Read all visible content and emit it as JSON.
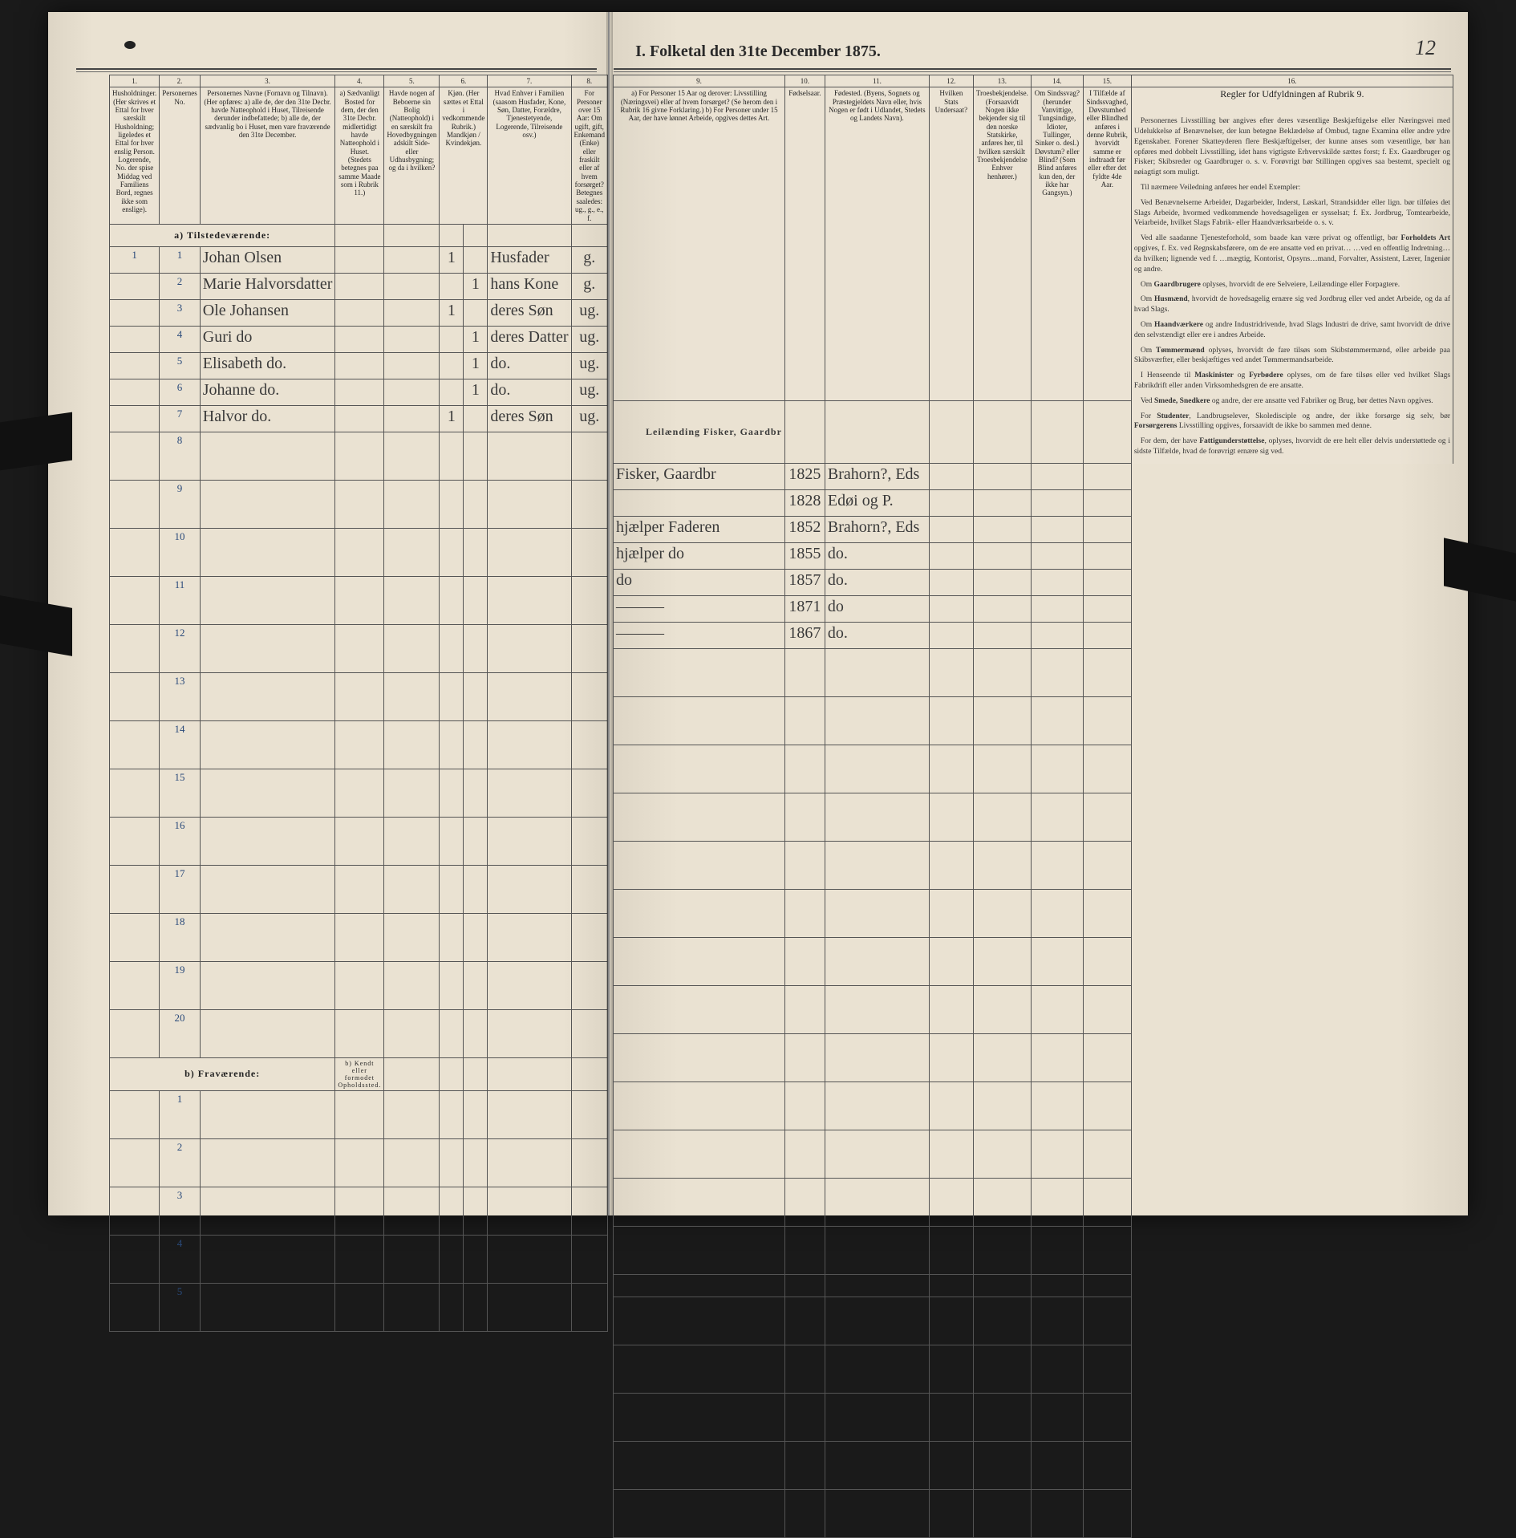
{
  "title": "I. Folketal den 31te December 1875.",
  "page_number": "12",
  "columns_left": {
    "c1": "1.",
    "c2": "2.",
    "c3": "3.",
    "c4": "4.",
    "c5": "5.",
    "c6": "6.",
    "c7": "7.",
    "c8": "8."
  },
  "columns_right": {
    "c9": "9.",
    "c10": "10.",
    "c11": "11.",
    "c12": "12.",
    "c13": "13.",
    "c14": "14.",
    "c15": "15.",
    "c16": "16."
  },
  "headers_left": {
    "h1": "Husholdninger. (Her skrives et Ettal for hver særskilt Husholdning; ligeledes et Ettal for hver enslig Person. Logerende, No. der spise Middag ved Familiens Bord, regnes ikke som enslige).",
    "h2": "Personernes No.",
    "h3": "Personernes Navne (Fornavn og Tilnavn).\n(Her opføres:\na) alle de, der den 31te Decbr. havde Natteophold i Huset, Tilreisende derunder indbefattede;\nb) alle de, der sædvanlig bo i Huset, men vare fraværende den 31te December.",
    "h4": "a) Sædvanligt Bosted for dem, der den 31te Decbr. midlertidigt havde Natteophold i Huset. (Stedets betegnes paa samme Maade som i Rubrik 11.)",
    "h5": "Havde nogen af Beboerne sin Bolig (Natteophold) i en særskilt fra Hovedbygningen adskilt Side- eller Udhusbygning; og da i hvilken?",
    "h6": "Kjøn. (Her sættes et Ettal i vedkommende Rubrik.) Mandkjøn / Kvindekjøn.",
    "h7": "Hvad Enhver i Familien (saasom Husfader, Kone, Søn, Datter, Forældre, Tjenestetyende, Logerende, Tilreisende osv.)",
    "h8": "For Personer over 15 Aar: Om ugift, gift, Enkemand (Enke) eller fraskilt eller af hvem forsørget? Betegnes saaledes: ug., g., e., f."
  },
  "headers_right": {
    "h9": "a) For Personer 15 Aar og derover: Livsstilling (Næringsvei) eller af hvem forsørget? (Se herom den i Rubrik 16 givne Forklaring.)\nb) For Personer under 15 Aar, der have lønnet Arbeide, opgives dettes Art.",
    "h10": "Fødselsaar.",
    "h11": "Fødested. (Byens, Sognets og Præstegjeldets Navn eller, hvis Nogen er født i Udlandet, Stedets og Landets Navn).",
    "h12": "Hvilken Stats Undersaat?",
    "h13": "Troesbekjendelse. (Forsaavidt Nogen ikke bekjender sig til den norske Statskirke, anføres her, til hvilken særskilt Troesbekjendelse Enhver henhører.)",
    "h14": "Om Sindssvag? (herunder Vanvittige, Tungsindige, Idioter, Tullinger, Sinker o. desl.) Døvstum? eller Blind? (Som Blind anføres kun den, der ikke har Gangsyn.)",
    "h15": "I Tilfælde af Sindssvaghed, Døvstumhed eller Blindhed anføres i denne Rubrik, hvorvidt samme er indtraadt før eller efter det fyldte 4de Aar.",
    "h16": "Regler for Udfyldningen af Rubrik 9."
  },
  "section_a": "a) Tilstedeværende:",
  "section_b": "b) Fraværende:",
  "section_b_note": "b) Kendt eller formodet Opholdssted.",
  "rows": [
    {
      "n": "1",
      "p": "1",
      "name": "Johan Olsen",
      "c4": "",
      "c5": "",
      "c6a": "1",
      "c6b": "",
      "role": "Husfader",
      "civ": "g.",
      "occ": "Leilænding\nFisker, Gaardbr",
      "year": "1825",
      "place": "Brahorn?, Eds"
    },
    {
      "n": "",
      "p": "2",
      "name": "Marie Halvorsdatter",
      "c4": "",
      "c5": "",
      "c6a": "",
      "c6b": "1",
      "role": "hans Kone",
      "civ": "g.",
      "occ": "",
      "year": "1828",
      "place": "Edøi og P."
    },
    {
      "n": "",
      "p": "3",
      "name": "Ole Johansen",
      "c4": "",
      "c5": "",
      "c6a": "1",
      "c6b": "",
      "role": "deres Søn",
      "civ": "ug.",
      "occ": "hjælper Faderen",
      "year": "1852",
      "place": "Brahorn?, Eds"
    },
    {
      "n": "",
      "p": "4",
      "name": "Guri do",
      "c4": "",
      "c5": "",
      "c6a": "",
      "c6b": "1",
      "role": "deres Datter",
      "civ": "ug.",
      "occ": "hjælper do",
      "year": "1855",
      "place": "do."
    },
    {
      "n": "",
      "p": "5",
      "name": "Elisabeth do.",
      "c4": "",
      "c5": "",
      "c6a": "",
      "c6b": "1",
      "role": "do.",
      "civ": "ug.",
      "occ": "do",
      "year": "1857",
      "place": "do."
    },
    {
      "n": "",
      "p": "6",
      "name": "Johanne do.",
      "c4": "",
      "c5": "",
      "c6a": "",
      "c6b": "1",
      "role": "do.",
      "civ": "ug.",
      "occ": "———",
      "year": "1871",
      "place": "do"
    },
    {
      "n": "",
      "p": "7",
      "name": "Halvor do.",
      "c4": "",
      "c5": "",
      "c6a": "1",
      "c6b": "",
      "role": "deres Søn",
      "civ": "ug.",
      "occ": "———",
      "year": "1867",
      "place": "do."
    }
  ],
  "empty_left": [
    "8",
    "9",
    "10",
    "11",
    "12",
    "13",
    "14",
    "15",
    "16",
    "17",
    "18",
    "19",
    "20"
  ],
  "empty_b": [
    "1",
    "2",
    "3",
    "4",
    "5"
  ],
  "side_header": "Regler for Udfyldningen\naf\nRubrik 9.",
  "side_paragraphs": [
    "Personernes Livsstilling bør angives efter deres væsentlige Beskjæftigelse eller Næringsvei med Udelukkelse af Benævnelser, der kun betegne Beklædelse af Ombud, tagne Examina eller andre ydre Egenskaber. Forener Skatteyderen flere Beskjæftigelser, der kunne anses som væsentlige, bør han opføres med dobbelt Livsstilling, idet hans vigtigste Erhvervskilde sættes forst; f. Ex. Gaardbruger og Fisker; Skibsreder og Gaardbruger o. s. v. Forøvrigt bør Stillingen opgives saa bestemt, specielt og nøiagtigt som muligt.",
    "Til nærmere Veiledning anføres her endel Exempler:",
    "Ved Benævnelserne Arbeider, Dagarbeider, Inderst, Løskarl, Strandsidder eller lign. bør tilføies det Slags Arbeide, hvormed vedkommende hovedsageligen er sysselsat; f. Ex. Jordbrug, Tomtearbeide, Veiarbeide, hvilket Slags Fabrik- eller Haandværksarbeide o. s. v.",
    "Ved alle saadanne Tjenesteforhold, som baade kan være privat og offentligt, bør Forholdets Art opgives, f. Ex. ved Regnskabsførere, om de ere ansatte ved en privat… …ved en offentlig Indretning… da hvilken; lignende ved f. …mægtig, Kontorist, Opsyns…mand, Forvalter, Assistent, Lærer, Ingeniør og andre.",
    "Om Gaardbrugere oplyses, hvorvidt de ere Selveiere, Leilændinge eller Forpagtere.",
    "Om Husmænd, hvorvidt de hovedsagelig ernære sig ved Jordbrug eller ved andet Arbeide, og da af hvad Slags.",
    "Om Haandværkere og andre Industridrivende, hvad Slags Industri de drive, samt hvorvidt de drive den selvstændigt eller ere i andres Arbeide.",
    "Om Tømmermænd oplyses, hvorvidt de fare tilsøs som Skibstømmermænd, eller arbeide paa Skibsværfter, eller beskjæftiges ved andet Tømmermandsarbeide.",
    "I Henseende til Maskinister og Fyrbødere oplyses, om de fare tilsøs eller ved hvilket Slags Fabrikdrift eller anden Virksomhedsgren de ere ansatte.",
    "Ved Smede, Snedkere og andre, der ere ansatte ved Fabriker og Brug, bør dettes Navn opgives.",
    "For Studenter, Landbrugselever, Skoledisciple og andre, der ikke forsørge sig selv, bør Forsørgerens Livsstilling opgives, forsaavidt de ikke bo sammen med denne.",
    "For dem, der have Fattigunderstøttelse, oplyses, hvorvidt de ere helt eller delvis understøttede og i sidste Tilfælde, hvad de forøvrigt ernære sig ved."
  ],
  "colors": {
    "paper": "#e8e0d0",
    "ink": "#2a2a2a",
    "script": "#3a3a3a",
    "rule": "#555555",
    "rownum": "#2a4a7a"
  }
}
